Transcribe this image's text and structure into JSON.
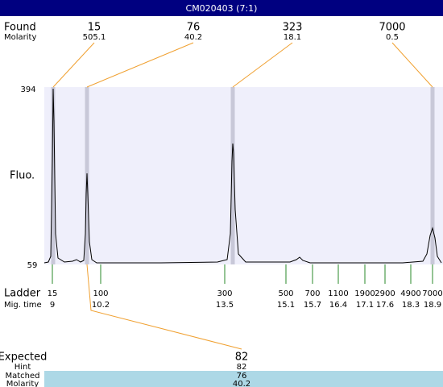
{
  "header": {
    "title": "CM020403 (7:1)"
  },
  "found": {
    "label": "Found",
    "molarity_label": "Molarity",
    "peaks": [
      {
        "size": 15,
        "molarity": 505.1
      },
      {
        "size": 76,
        "molarity": 40.2
      },
      {
        "size": 323,
        "molarity": 18.1
      },
      {
        "size": 7000,
        "molarity": 0.5
      }
    ]
  },
  "plot": {
    "y_top": 394,
    "y_bottom": 59,
    "y_label": "Fluo."
  },
  "ladder": {
    "label": "Ladder",
    "time_label": "Mig. time",
    "entries": [
      {
        "size": 15,
        "time": 9
      },
      {
        "size": 100,
        "time": 10.2
      },
      {
        "size": 300,
        "time": 13.5
      },
      {
        "size": 500,
        "time": 15.1
      },
      {
        "size": 700,
        "time": 15.7
      },
      {
        "size": 1100,
        "time": 16.4
      },
      {
        "size": 1900,
        "time": 17.1
      },
      {
        "size": 2900,
        "time": 17.6
      },
      {
        "size": 4900,
        "time": 18.3
      },
      {
        "size": 7000,
        "time": 18.9
      }
    ]
  },
  "expected": {
    "label": "Expected",
    "value": 82
  },
  "hint": {
    "label": "Hint",
    "value": 82
  },
  "matched": {
    "label": "Matched",
    "value": 76
  },
  "molarity": {
    "label": "Molarity",
    "value": 40.2
  }
}
